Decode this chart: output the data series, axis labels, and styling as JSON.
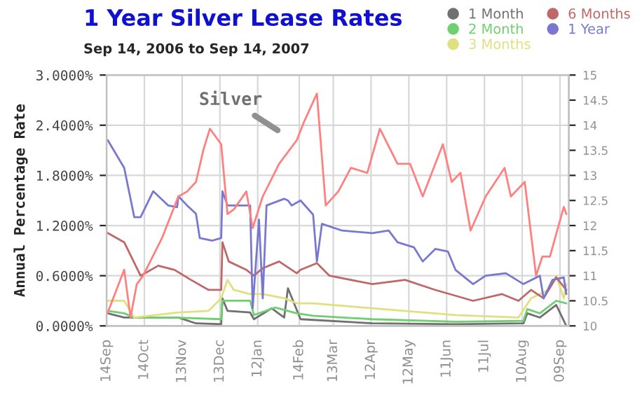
{
  "chart_data": {
    "type": "line",
    "title": "1 Year Silver Lease Rates",
    "subtitle": "Sep 14, 2006 to Sep 14, 2007",
    "ylabel": "Annual Percentage Rate",
    "annotations": [
      "Silver"
    ],
    "xlim": [
      "2006-09-14",
      "2007-09-16"
    ],
    "xticks": [
      {
        "value": "2006-09-14",
        "label": "14Sep"
      },
      {
        "value": "2006-10-14",
        "label": "14Oct"
      },
      {
        "value": "2006-11-13",
        "label": "13Nov"
      },
      {
        "value": "2006-12-13",
        "label": "13Dec"
      },
      {
        "value": "2007-01-12",
        "label": "12Jan"
      },
      {
        "value": "2007-02-14",
        "label": "14Feb"
      },
      {
        "value": "2007-03-13",
        "label": "13Mar"
      },
      {
        "value": "2007-04-12",
        "label": "12Apr"
      },
      {
        "value": "2007-05-12",
        "label": "12May"
      },
      {
        "value": "2007-06-11",
        "label": "11Jun"
      },
      {
        "value": "2007-07-11",
        "label": "11Jul"
      },
      {
        "value": "2007-08-10",
        "label": "10Aug"
      },
      {
        "value": "2007-09-09",
        "label": "09Sep"
      }
    ],
    "ylim": [
      0,
      3
    ],
    "yticks": [
      {
        "value": 0,
        "label": "0.0000%"
      },
      {
        "value": 0.6,
        "label": "0.6000%"
      },
      {
        "value": 1.2,
        "label": "1.2000%"
      },
      {
        "value": 1.8,
        "label": "1.8000%"
      },
      {
        "value": 2.4,
        "label": "2.4000%"
      },
      {
        "value": 3,
        "label": "3.0000%"
      }
    ],
    "y2lim": [
      10,
      15
    ],
    "y2ticks": [
      10,
      10.5,
      11,
      11.5,
      12,
      12.5,
      13,
      13.5,
      14,
      14.5,
      15
    ],
    "grid": true,
    "legend": "top right",
    "series": [
      {
        "name": "1 Month",
        "color": "#707070",
        "x": [
          "2006-09-15",
          "2006-09-28",
          "2006-11-10",
          "2006-11-24",
          "2006-12-14",
          "2006-12-15",
          "2006-12-19",
          "2007-01-06",
          "2007-01-09",
          "2007-01-23",
          "2007-02-02",
          "2007-02-05",
          "2007-02-15",
          "2007-04-13",
          "2007-06-18",
          "2007-08-11",
          "2007-08-14",
          "2007-08-24",
          "2007-09-06",
          "2007-09-14"
        ],
        "values": [
          0.15,
          0.1,
          0.1,
          0.03,
          0.02,
          0.33,
          0.18,
          0.16,
          0.08,
          0.21,
          0.1,
          0.45,
          0.08,
          0.03,
          0.02,
          0.03,
          0.15,
          0.1,
          0.25,
          0.0
        ]
      },
      {
        "name": "2 Month",
        "color": "#70d070",
        "x": [
          "2006-09-15",
          "2006-09-28",
          "2006-10-06",
          "2006-11-07",
          "2006-12-14",
          "2006-12-15",
          "2007-01-06",
          "2007-01-09",
          "2007-01-26",
          "2007-02-12",
          "2007-02-25",
          "2007-04-13",
          "2007-06-18",
          "2007-08-11",
          "2007-08-14",
          "2007-08-24",
          "2007-09-06",
          "2007-09-14"
        ],
        "values": [
          0.18,
          0.15,
          0.1,
          0.1,
          0.08,
          0.3,
          0.3,
          0.13,
          0.22,
          0.15,
          0.12,
          0.08,
          0.05,
          0.06,
          0.2,
          0.15,
          0.3,
          0.27
        ]
      },
      {
        "name": "3 Months",
        "color": "#e0e080",
        "x": [
          "2006-09-15",
          "2006-09-28",
          "2006-10-06",
          "2006-11-10",
          "2006-12-04",
          "2006-12-14",
          "2006-12-19",
          "2006-12-24",
          "2007-01-06",
          "2007-01-16",
          "2007-02-02",
          "2007-02-12",
          "2007-02-25",
          "2007-04-13",
          "2007-06-18",
          "2007-08-07",
          "2007-08-17",
          "2007-08-31",
          "2007-09-06",
          "2007-09-12",
          "2007-09-14"
        ],
        "values": [
          0.3,
          0.3,
          0.1,
          0.16,
          0.18,
          0.33,
          0.55,
          0.43,
          0.38,
          0.38,
          0.33,
          0.27,
          0.27,
          0.21,
          0.13,
          0.1,
          0.33,
          0.43,
          0.6,
          0.33,
          0.5
        ]
      },
      {
        "name": "6 Months",
        "color": "#c06868",
        "x": [
          "2006-09-15",
          "2006-09-28",
          "2006-10-11",
          "2006-10-25",
          "2006-11-07",
          "2006-11-20",
          "2006-12-04",
          "2006-12-14",
          "2006-12-15",
          "2006-12-20",
          "2007-01-03",
          "2007-01-09",
          "2007-01-16",
          "2007-01-29",
          "2007-02-12",
          "2007-02-15",
          "2007-02-28",
          "2007-03-10",
          "2007-04-13",
          "2007-05-09",
          "2007-06-02",
          "2007-07-02",
          "2007-07-25",
          "2007-08-07",
          "2007-08-17",
          "2007-08-27",
          "2007-09-06",
          "2007-09-14"
        ],
        "values": [
          1.11,
          1.0,
          0.6,
          0.72,
          0.67,
          0.55,
          0.43,
          0.43,
          1.0,
          0.77,
          0.67,
          0.6,
          0.69,
          0.77,
          0.63,
          0.67,
          0.75,
          0.6,
          0.5,
          0.55,
          0.43,
          0.3,
          0.38,
          0.3,
          0.43,
          0.33,
          0.58,
          0.43
        ]
      },
      {
        "name": "1 Year",
        "color": "#7878d0",
        "x": [
          "2006-09-15",
          "2006-09-28",
          "2006-10-06",
          "2006-10-11",
          "2006-10-21",
          "2006-11-02",
          "2006-11-09",
          "2006-11-10",
          "2006-11-17",
          "2006-11-24",
          "2006-11-27",
          "2006-12-07",
          "2006-12-14",
          "2006-12-15",
          "2006-12-19",
          "2007-01-06",
          "2007-01-08",
          "2007-01-13",
          "2007-01-16",
          "2007-01-19",
          "2007-02-02",
          "2007-02-05",
          "2007-02-08",
          "2007-02-15",
          "2007-02-25",
          "2007-02-28",
          "2007-03-04",
          "2007-03-20",
          "2007-04-13",
          "2007-04-26",
          "2007-05-03",
          "2007-05-16",
          "2007-05-23",
          "2007-06-02",
          "2007-06-12",
          "2007-06-18",
          "2007-07-02",
          "2007-07-12",
          "2007-07-28",
          "2007-08-11",
          "2007-08-24",
          "2007-08-27",
          "2007-09-03",
          "2007-09-12",
          "2007-09-14"
        ],
        "values": [
          2.22,
          1.89,
          1.3,
          1.3,
          1.61,
          1.44,
          1.42,
          1.55,
          1.44,
          1.34,
          1.05,
          1.02,
          1.05,
          1.61,
          1.44,
          1.44,
          0.21,
          1.27,
          0.33,
          1.44,
          1.52,
          1.5,
          1.44,
          1.5,
          1.33,
          0.77,
          1.22,
          1.14,
          1.11,
          1.14,
          1.0,
          0.94,
          0.77,
          0.92,
          0.89,
          0.67,
          0.5,
          0.6,
          0.63,
          0.5,
          0.6,
          0.33,
          0.55,
          0.58,
          0.38
        ]
      },
      {
        "color": "#ff8080",
        "axis": "y2",
        "x": [
          "2006-09-15",
          "2006-09-28",
          "2006-10-03",
          "2006-10-08",
          "2006-10-13",
          "2006-10-28",
          "2006-11-10",
          "2006-11-17",
          "2006-11-24",
          "2006-11-30",
          "2006-12-05",
          "2006-12-14",
          "2006-12-19",
          "2006-12-24",
          "2007-01-03",
          "2007-01-08",
          "2007-01-16",
          "2007-01-29",
          "2007-02-12",
          "2007-02-18",
          "2007-02-28",
          "2007-03-07",
          "2007-03-17",
          "2007-03-27",
          "2007-04-09",
          "2007-04-19",
          "2007-05-03",
          "2007-05-13",
          "2007-05-23",
          "2007-06-08",
          "2007-06-15",
          "2007-06-22",
          "2007-06-30",
          "2007-07-12",
          "2007-07-27",
          "2007-08-01",
          "2007-08-12",
          "2007-08-21",
          "2007-08-26",
          "2007-09-01",
          "2007-09-12",
          "2007-09-14"
        ],
        "values": [
          10.27,
          11.12,
          10.17,
          10.83,
          11.0,
          11.75,
          12.58,
          12.68,
          12.87,
          13.52,
          13.93,
          13.62,
          12.23,
          12.32,
          12.68,
          11.95,
          12.58,
          13.23,
          13.7,
          14.08,
          14.63,
          12.4,
          12.68,
          13.15,
          13.05,
          13.93,
          13.23,
          13.23,
          12.58,
          13.62,
          12.87,
          13.05,
          11.9,
          12.58,
          13.15,
          12.58,
          12.87,
          11.0,
          11.38,
          11.38,
          12.37,
          12.23
        ]
      }
    ]
  }
}
